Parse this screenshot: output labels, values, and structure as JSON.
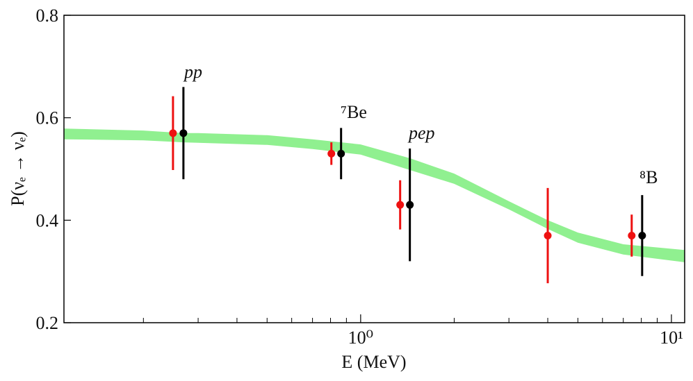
{
  "chart_data": {
    "type": "errorbar",
    "xlabel": "E (MeV)",
    "ylabel": "P(νₑ → νₑ)",
    "xscale": "log",
    "xlim": [
      0.111,
      11.03
    ],
    "ylim": [
      0.2,
      0.8
    ],
    "xticks": [
      {
        "value": 1,
        "label": "10⁰"
      },
      {
        "value": 10,
        "label": "10¹"
      }
    ],
    "xminorticks": [
      0.2,
      0.3,
      0.4,
      0.5,
      0.6,
      0.7,
      0.8,
      0.9,
      2,
      3,
      4,
      5,
      6,
      7,
      8,
      9
    ],
    "yticks": [
      0.2,
      0.4,
      0.6,
      0.8
    ],
    "band": {
      "color": "#90f090",
      "x": [
        0.111,
        0.2,
        0.269,
        0.3,
        0.5,
        0.7,
        1.0,
        1.44,
        2,
        3,
        4,
        5,
        7,
        11.03
      ],
      "upper": [
        0.579,
        0.575,
        0.57,
        0.57,
        0.566,
        0.558,
        0.548,
        0.521,
        0.491,
        0.437,
        0.4,
        0.376,
        0.353,
        0.342
      ],
      "lower": [
        0.558,
        0.556,
        0.552,
        0.551,
        0.547,
        0.539,
        0.528,
        0.498,
        0.471,
        0.421,
        0.383,
        0.356,
        0.333,
        0.318
      ]
    },
    "series": [
      {
        "color": "#ee1111",
        "x": [
          0.249,
          0.805,
          1.34,
          4.0,
          7.45
        ],
        "values": [
          0.57,
          0.53,
          0.43,
          0.37,
          0.37
        ],
        "errors": [
          0.072,
          0.022,
          0.048,
          0.093,
          0.041
        ]
      },
      {
        "color": "#000000",
        "x": [
          0.269,
          0.865,
          1.44,
          8.05
        ],
        "values": [
          0.57,
          0.53,
          0.43,
          0.37
        ],
        "errors": [
          0.09,
          0.05,
          0.11,
          0.079
        ]
      }
    ],
    "annotations": [
      "pp",
      "⁷Be",
      "pep",
      "⁸B"
    ]
  }
}
